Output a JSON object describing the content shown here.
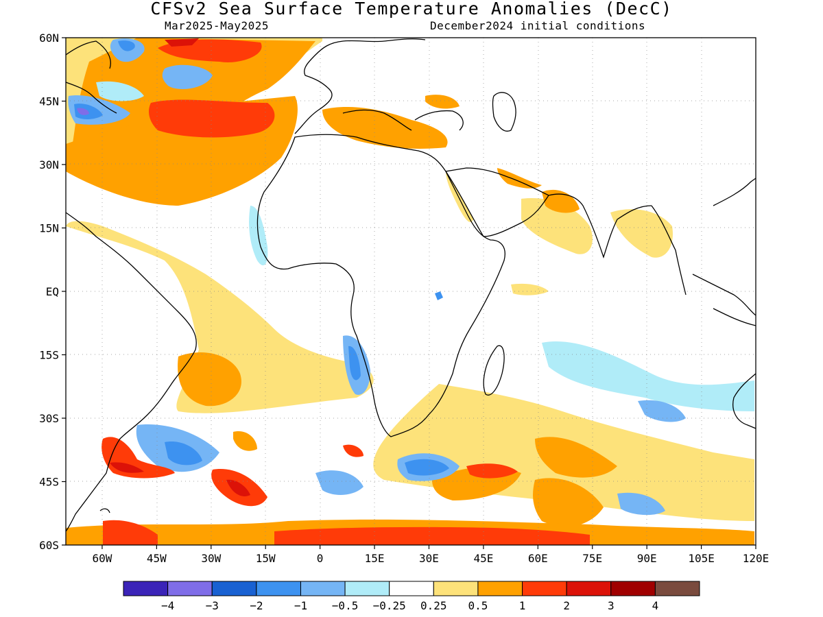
{
  "title": "CFSv2 Sea Surface Temperature Anomalies (DecC)",
  "valid_period": "Mar2025-May2025",
  "init_conditions": "December2024 initial conditions",
  "map": {
    "lat_labels": [
      "60N",
      "45N",
      "30N",
      "15N",
      "EQ",
      "15S",
      "30S",
      "45S",
      "60S"
    ],
    "lat_values": [
      60,
      45,
      30,
      15,
      0,
      -15,
      -30,
      -45,
      -60
    ],
    "lon_labels": [
      "60W",
      "45W",
      "30W",
      "15W",
      "0",
      "15E",
      "30E",
      "45E",
      "60E",
      "75E",
      "90E",
      "105E",
      "120E"
    ],
    "lon_values": [
      -60,
      -45,
      -30,
      -15,
      0,
      15,
      30,
      45,
      60,
      75,
      90,
      105,
      120
    ],
    "lon_range": [
      -70,
      120
    ],
    "lat_range": [
      -60,
      60
    ]
  },
  "colorbar": {
    "colors": [
      "#3b24b8",
      "#7f6de8",
      "#1961d2",
      "#3d92f0",
      "#75b5f5",
      "#b0ecf8",
      "#ffffff",
      "#fde27a",
      "#ffa100",
      "#ff3b08",
      "#dc1208",
      "#a00000",
      "#7a4b3e"
    ],
    "labels": [
      "−4",
      "−3",
      "−2",
      "−1",
      "−0.5",
      "−0.25",
      "0.25",
      "0.5",
      "1",
      "2",
      "3",
      "4"
    ]
  }
}
